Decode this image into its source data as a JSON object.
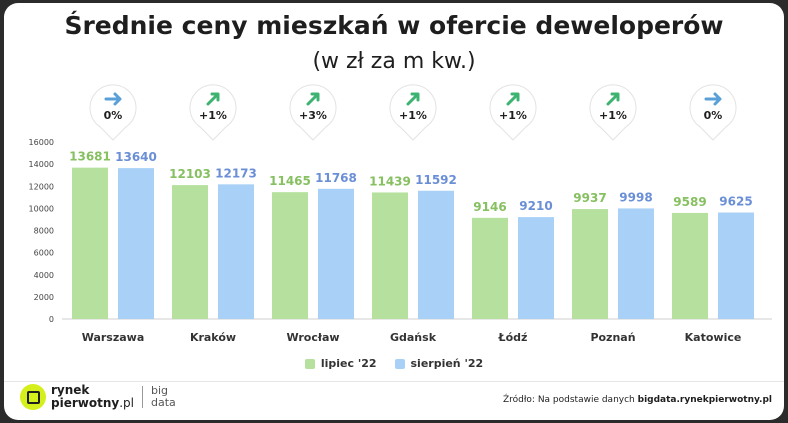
{
  "title": "Średnie ceny mieszkań w ofercie deweloperów",
  "subtitle": "(w zł za m kw.)",
  "chart_data": {
    "type": "bar",
    "title": "Średnie ceny mieszkań w ofercie deweloperów",
    "subtitle": "(w zł za m kw.)",
    "categories": [
      "Warszawa",
      "Kraków",
      "Wrocław",
      "Gdańsk",
      "Łódź",
      "Poznań",
      "Katowice"
    ],
    "series": [
      {
        "name": "lipiec '22",
        "values": [
          13681,
          12103,
          11465,
          11439,
          9146,
          9937,
          9589
        ],
        "color": "#b5e09d"
      },
      {
        "name": "sierpień '22",
        "values": [
          13640,
          12173,
          11768,
          11592,
          9210,
          9998,
          9625
        ],
        "color": "#a9d1f7"
      }
    ],
    "changes": [
      {
        "label": "0%",
        "direction": "right"
      },
      {
        "label": "+1%",
        "direction": "up"
      },
      {
        "label": "+3%",
        "direction": "up"
      },
      {
        "label": "+1%",
        "direction": "up"
      },
      {
        "label": "+1%",
        "direction": "up"
      },
      {
        "label": "+1%",
        "direction": "up"
      },
      {
        "label": "0%",
        "direction": "right"
      }
    ],
    "ylim": [
      0,
      16000
    ],
    "yticks": [
      "0",
      "2000",
      "4000",
      "6000",
      "8000",
      "10000",
      "12000",
      "14000",
      "16000"
    ],
    "grid": false,
    "legend_position": "bottom-center",
    "label_colors": {
      "lipiec": "#86c061",
      "sierpien": "#6b8fd6"
    },
    "arrow_colors": {
      "up": "#3cb371",
      "right": "#5aa0d8"
    }
  },
  "legend": [
    {
      "label": "lipiec '22",
      "color": "#b5e09d"
    },
    {
      "label": "sierpień '22",
      "color": "#a9d1f7"
    }
  ],
  "footer": {
    "logo_line1": "rynek",
    "logo_line2": "pierwotny",
    "logo_suffix": ".pl",
    "big_line1": "big",
    "big_line2": "data",
    "source_prefix": "Źródło: Na podstawie danych",
    "source_link": "bigdata.rynekpierwotny.pl"
  }
}
